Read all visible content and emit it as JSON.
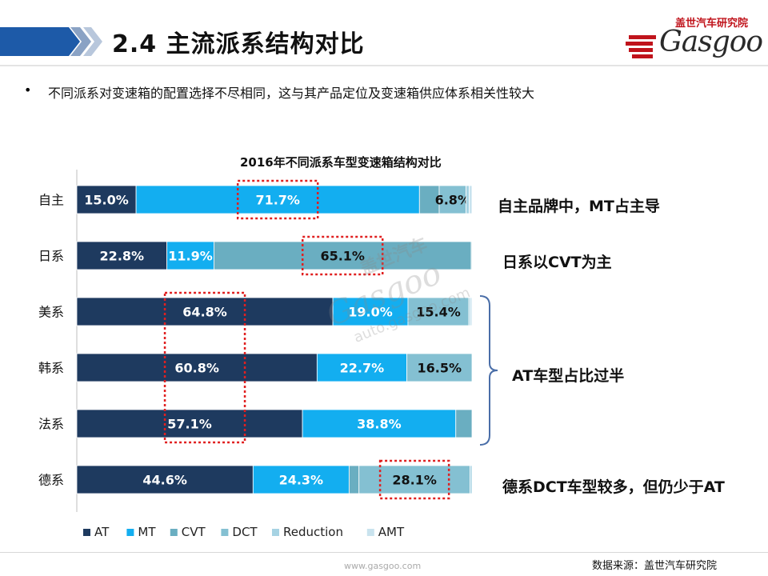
{
  "header": {
    "title": "2.4  主流派系结构对比",
    "logo_cn": "盖世汽车研究院",
    "logo_word": "Gasgoo"
  },
  "bullet": {
    "marker": "•",
    "text": "不同派系对变速箱的配置选择不尽相同，这与其产品定位及变速箱供应体系相关性较大"
  },
  "watermark": {
    "line1": "盖世汽车",
    "line2": "Gasgoo",
    "line3": "auto.gasgoo.com"
  },
  "colors": {
    "AT": "#1e3a5f",
    "MT": "#13aef0",
    "CVT": "#6aaec1",
    "DCT": "#84c0d2",
    "Reduction": "#a6d3e3",
    "AMT": "#c9e3ee",
    "highlight": "#e02020"
  },
  "chart_data": {
    "type": "bar",
    "orientation": "horizontal",
    "stacked": true,
    "percent": true,
    "title": "2016年不同派系车型变速箱结构对比",
    "categories": [
      "自主",
      "日系",
      "美系",
      "韩系",
      "法系",
      "德系"
    ],
    "series": [
      {
        "name": "AT",
        "values": [
          15.0,
          22.8,
          64.8,
          60.8,
          57.1,
          44.6
        ],
        "labels": [
          "15.0%",
          "22.8%",
          "64.8%",
          "60.8%",
          "57.1%",
          "44.6%"
        ]
      },
      {
        "name": "MT",
        "values": [
          71.7,
          11.9,
          19.0,
          22.7,
          38.8,
          24.3
        ],
        "labels": [
          "71.7%",
          "11.9%",
          "19.0%",
          "22.7%",
          "38.8%",
          "24.3%"
        ]
      },
      {
        "name": "CVT",
        "values": [
          5.0,
          65.1,
          0.0,
          0.0,
          4.1,
          2.5
        ],
        "labels": [
          "",
          "65.1%",
          "",
          "",
          "",
          ""
        ]
      },
      {
        "name": "DCT",
        "values": [
          6.8,
          0.2,
          15.4,
          16.5,
          0.0,
          28.1
        ],
        "labels": [
          "6.8%",
          "",
          "15.4%",
          "16.5%",
          "",
          "28.1%"
        ]
      },
      {
        "name": "Reduction",
        "values": [
          0.8,
          0.0,
          0.4,
          0.0,
          0.0,
          0.5
        ],
        "labels": [
          "",
          "",
          "",
          "",
          "",
          ""
        ]
      },
      {
        "name": "AMT",
        "values": [
          0.7,
          0.0,
          0.4,
          0.0,
          0.0,
          0.0
        ],
        "labels": [
          "",
          "",
          "",
          "",
          "",
          ""
        ]
      }
    ],
    "xlim": [
      0,
      100
    ],
    "legend_position": "bottom",
    "grid": false,
    "highlights": [
      {
        "category": "自主",
        "series": "MT"
      },
      {
        "category": "日系",
        "series": "CVT"
      },
      {
        "categories": [
          "美系",
          "韩系",
          "法系"
        ],
        "series": "AT"
      },
      {
        "category": "德系",
        "series": "DCT"
      }
    ]
  },
  "annotations": {
    "zizhu": "自主品牌中，MT占主导",
    "rixi": "日系以CVT为主",
    "at_group": "AT车型占比过半",
    "dexi": "德系DCT车型较多，但仍少于AT"
  },
  "footer": {
    "source": "数据来源：盖世汽车研究院",
    "url": "www.gasgoo.com"
  }
}
